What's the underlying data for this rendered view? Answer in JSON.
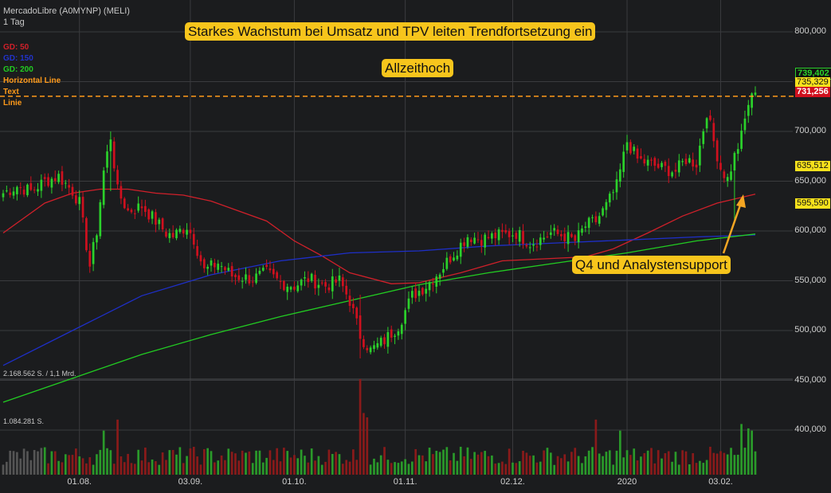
{
  "header": {
    "title": "MercadoLibre (A0MYNP) (MELI)",
    "interval": "1 Tag"
  },
  "legend": [
    {
      "label": "GD: 50",
      "color": "#d0202a"
    },
    {
      "label": "GD: 150",
      "color": "#2233cc"
    },
    {
      "label": "GD: 200",
      "color": "#22cc22"
    },
    {
      "label": "Horizontal Line",
      "color": "#ff9a1a"
    },
    {
      "label": "Text",
      "color": "#ff9a1a"
    },
    {
      "label": "Linie",
      "color": "#ff9a1a"
    }
  ],
  "annotations": {
    "headline": "Starkes Wachstum bei Umsatz und TPV  leiten Trendfortsetzung ein",
    "ath": "Allzeithoch",
    "q4": "Q4 und Analystensupport"
  },
  "volume_labels": {
    "upper": "2.168.562 S. / 1,1 Mrd.",
    "lower": "1.084.281 S."
  },
  "price_tags": {
    "last": "739,402",
    "hline": "735,329",
    "prev": "731,256",
    "gd50": "635,512",
    "gd150": "595,590"
  },
  "colors": {
    "up": "#2bd12b",
    "down": "#d0101e",
    "vol_up": "#2a9a2a",
    "vol_down": "#8a1a1a",
    "hline": "#ff9a1a",
    "annot_bg": "#f7c51c",
    "arrow": "#f5a623"
  },
  "chart_data": {
    "type": "candlestick",
    "title": "MercadoLibre (A0MYNP) (MELI)",
    "y_axis": {
      "ticks": [
        "800,000",
        "750,000",
        "700,000",
        "650,000",
        "600,000",
        "550,000",
        "500,000",
        "450,000",
        "400,000"
      ],
      "range": [
        400,
        810
      ]
    },
    "x_axis": {
      "ticks": [
        "01.08.",
        "03.09.",
        "01.10.",
        "01.11.",
        "02.12.",
        "2020",
        "03.02."
      ]
    },
    "horizontal_line": 735.329,
    "anchors": [
      [
        0,
        638
      ],
      [
        4,
        645
      ],
      [
        8,
        640
      ],
      [
        12,
        650
      ],
      [
        16,
        655
      ],
      [
        20,
        640
      ],
      [
        22,
        628
      ],
      [
        25,
        565
      ],
      [
        27,
        600
      ],
      [
        29,
        660
      ],
      [
        31,
        695
      ],
      [
        33,
        640
      ],
      [
        36,
        620
      ],
      [
        40,
        625
      ],
      [
        44,
        610
      ],
      [
        47,
        598
      ],
      [
        49,
        595
      ],
      [
        53,
        605
      ],
      [
        55,
        592
      ],
      [
        58,
        560
      ],
      [
        62,
        568
      ],
      [
        66,
        555
      ],
      [
        72,
        552
      ],
      [
        76,
        558
      ],
      [
        80,
        548
      ],
      [
        84,
        545
      ],
      [
        88,
        552
      ],
      [
        93,
        545
      ],
      [
        97,
        550
      ],
      [
        100,
        530
      ],
      [
        103,
        495
      ],
      [
        106,
        480
      ],
      [
        110,
        490
      ],
      [
        114,
        505
      ],
      [
        118,
        535
      ],
      [
        122,
        545
      ],
      [
        126,
        560
      ],
      [
        130,
        578
      ],
      [
        134,
        595
      ],
      [
        138,
        592
      ],
      [
        142,
        595
      ],
      [
        148,
        598
      ],
      [
        152,
        588
      ],
      [
        155,
        592
      ],
      [
        158,
        598
      ],
      [
        162,
        595
      ],
      [
        165,
        590
      ],
      [
        168,
        605
      ],
      [
        171,
        610
      ],
      [
        174,
        625
      ],
      [
        177,
        645
      ],
      [
        180,
        690
      ],
      [
        183,
        672
      ],
      [
        186,
        668
      ],
      [
        190,
        663
      ],
      [
        194,
        660
      ],
      [
        197,
        672
      ],
      [
        200,
        668
      ],
      [
        203,
        720
      ],
      [
        205,
        690
      ],
      [
        207,
        663
      ],
      [
        209,
        652
      ],
      [
        211,
        675
      ],
      [
        213,
        695
      ],
      [
        215,
        728
      ],
      [
        217,
        739
      ]
    ],
    "special_days": [
      {
        "i": 103,
        "low": 472,
        "high": 536
      },
      {
        "i": 31,
        "low": 640,
        "high": 700
      },
      {
        "i": 211,
        "low": 610,
        "high": 680
      }
    ],
    "moving_averages": [
      {
        "name": "GD: 50",
        "points": [
          [
            0,
            598
          ],
          [
            12,
            628
          ],
          [
            20,
            638
          ],
          [
            28,
            642
          ],
          [
            36,
            642
          ],
          [
            44,
            638
          ],
          [
            52,
            636
          ],
          [
            60,
            630
          ],
          [
            68,
            620
          ],
          [
            76,
            610
          ],
          [
            84,
            590
          ],
          [
            92,
            575
          ],
          [
            100,
            558
          ],
          [
            112,
            547
          ],
          [
            120,
            548
          ],
          [
            132,
            558
          ],
          [
            144,
            570
          ],
          [
            156,
            572
          ],
          [
            168,
            574
          ],
          [
            176,
            582
          ],
          [
            186,
            598
          ],
          [
            196,
            615
          ],
          [
            206,
            628
          ],
          [
            217,
            637
          ]
        ]
      },
      {
        "name": "GD: 150",
        "points": [
          [
            0,
            465
          ],
          [
            20,
            500
          ],
          [
            40,
            535
          ],
          [
            60,
            556
          ],
          [
            80,
            570
          ],
          [
            100,
            578
          ],
          [
            120,
            580
          ],
          [
            140,
            585
          ],
          [
            160,
            588
          ],
          [
            180,
            591
          ],
          [
            200,
            594
          ],
          [
            217,
            596
          ]
        ]
      },
      {
        "name": "GD: 200",
        "points": [
          [
            0,
            428
          ],
          [
            20,
            452
          ],
          [
            40,
            476
          ],
          [
            60,
            496
          ],
          [
            80,
            514
          ],
          [
            100,
            530
          ],
          [
            120,
            546
          ],
          [
            140,
            558
          ],
          [
            160,
            568
          ],
          [
            180,
            578
          ],
          [
            200,
            590
          ],
          [
            217,
            597
          ]
        ]
      }
    ],
    "volume_spikes": [
      {
        "i": 103,
        "v": 2168562
      },
      {
        "i": 104,
        "v": 1400000
      },
      {
        "i": 105,
        "v": 1300000
      },
      {
        "i": 33,
        "v": 1250000
      },
      {
        "i": 29,
        "v": 1000000
      },
      {
        "i": 171,
        "v": 1250000
      },
      {
        "i": 178,
        "v": 1000000
      },
      {
        "i": 213,
        "v": 1150000
      },
      {
        "i": 215,
        "v": 1050000
      },
      {
        "i": 216,
        "v": 1000000
      }
    ]
  }
}
